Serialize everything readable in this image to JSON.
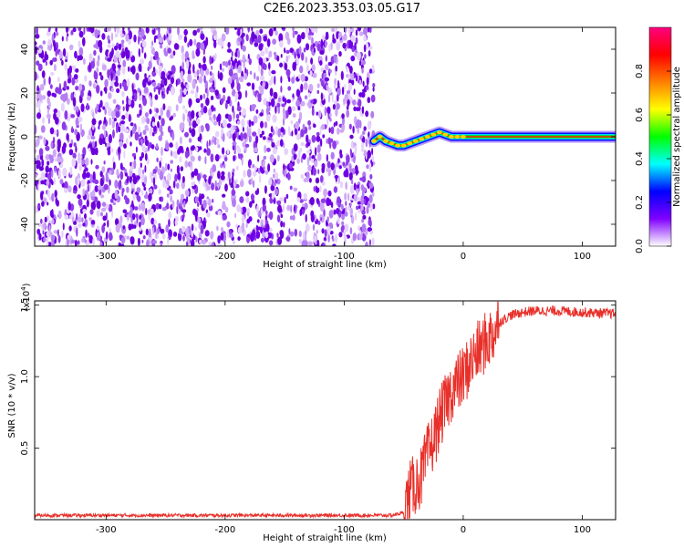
{
  "title": "C2E6.2023.353.03.05.G17",
  "chart_data": [
    {
      "type": "heatmap",
      "title": "C2E6.2023.353.03.05.G17",
      "xlabel": "Height of straight line (km)",
      "ylabel": "Frequency (Hz)",
      "xlim": [
        -360,
        128
      ],
      "ylim": [
        -50,
        50
      ],
      "xticks": [
        -300,
        -200,
        -100,
        0,
        100
      ],
      "yticks": [
        -40,
        -20,
        0,
        20,
        40
      ],
      "noise_region_x": [
        -360,
        -75
      ],
      "noise_color": "#7000e8",
      "signal_track": {
        "x": [
          -75,
          -70,
          -65,
          -60,
          -55,
          -50,
          -45,
          -40,
          -35,
          -30,
          -25,
          -20,
          -15,
          -10,
          -5,
          0,
          20,
          40,
          60,
          80,
          100,
          128
        ],
        "freq": [
          -2,
          0,
          -2,
          -3,
          -4,
          -4,
          -3,
          -2,
          -1,
          0,
          1,
          2,
          1,
          0,
          0,
          0,
          0,
          0,
          0,
          0,
          0,
          0
        ]
      },
      "colorbar": {
        "label": "Normalized spectral amplitude",
        "range": [
          0,
          1
        ],
        "ticks": [
          "0.0",
          "0.2",
          "0.4",
          "0.6",
          "0.8"
        ],
        "colors": [
          "#ffffff",
          "#8000ff",
          "#0000ff",
          "#00ffff",
          "#00ff00",
          "#ffff00",
          "#ff8000",
          "#ff0000",
          "#ff0080"
        ]
      },
      "grid": false
    },
    {
      "type": "line",
      "xlabel": "Height of straight line (km)",
      "ylabel": "SNR (10 * v/v)",
      "y_multiplier": "(x10",
      "y_multiplier_exp": "4",
      "y_multiplier_close": ")",
      "xlim": [
        -360,
        128
      ],
      "ylim": [
        0,
        1.53
      ],
      "xticks": [
        -300,
        -200,
        -100,
        0,
        100
      ],
      "yticks": [
        "0.5",
        "1.0",
        "1.5"
      ],
      "series": [
        {
          "color": "#e8302a",
          "x": [
            -360,
            -300,
            -200,
            -100,
            -60,
            -50,
            -45,
            -40,
            -35,
            -30,
            -25,
            -20,
            -15,
            -10,
            -5,
            0,
            5,
            10,
            15,
            20,
            25,
            30,
            40,
            50,
            60,
            80,
            100,
            128
          ],
          "y": [
            0.03,
            0.03,
            0.03,
            0.03,
            0.03,
            0.05,
            0.2,
            0.25,
            0.3,
            0.45,
            0.55,
            0.7,
            0.8,
            0.9,
            0.95,
            1.0,
            1.08,
            1.15,
            1.2,
            1.25,
            1.3,
            1.38,
            1.43,
            1.45,
            1.46,
            1.46,
            1.45,
            1.44
          ]
        }
      ],
      "grid": false
    }
  ]
}
